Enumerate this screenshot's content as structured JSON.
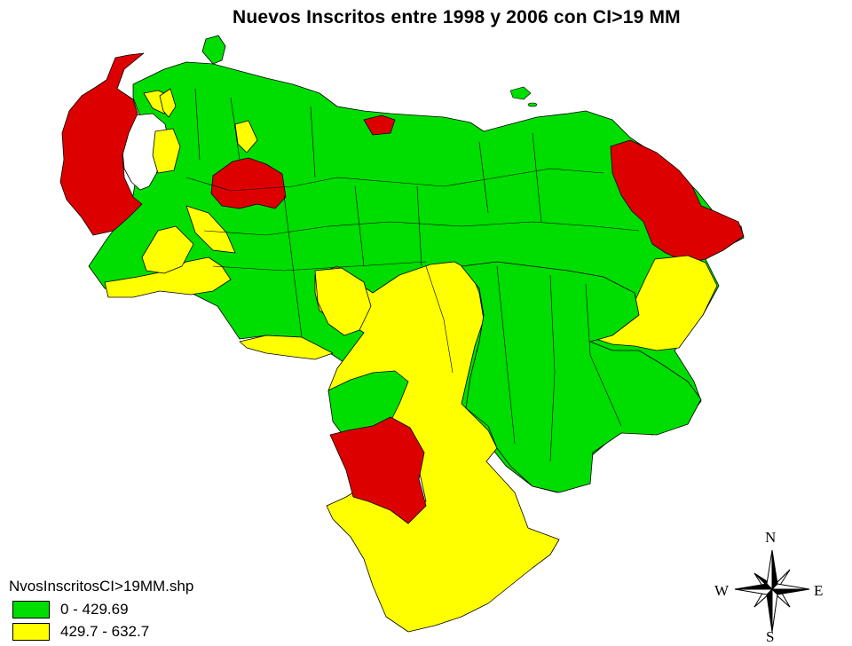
{
  "title": "Nuevos Inscritos entre 1998 y 2006 con CI>19 MM",
  "legend": {
    "title": "NvosInscritosCI>19MM.shp",
    "items": [
      {
        "label": "0 - 429.69",
        "color": "#00dd00"
      },
      {
        "label": "429.7 - 632.7",
        "color": "#ffff00"
      },
      {
        "label": "",
        "color": "#dd0000"
      }
    ]
  },
  "compass": {
    "n": "N",
    "e": "E",
    "s": "S",
    "w": "W"
  },
  "colors": {
    "low": "#00dd00",
    "mid": "#ffff00",
    "high": "#dd0000",
    "border": "#000000",
    "water": "#ffffff"
  }
}
